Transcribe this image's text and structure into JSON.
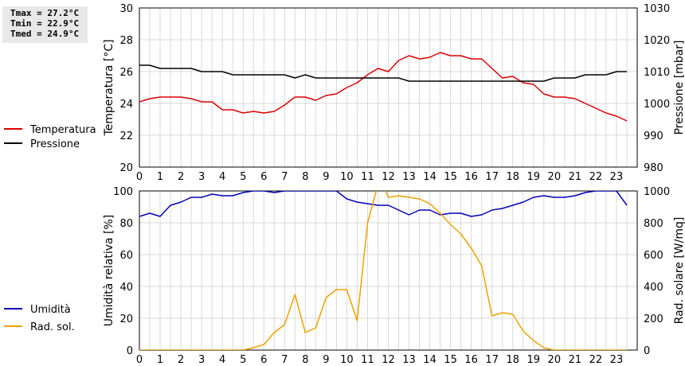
{
  "stats": {
    "tmax": "Tmax = 27.2°C",
    "tmin": "Tmin = 22.9°C",
    "tmed": "Tmed = 24.9°C"
  },
  "colors": {
    "temperature": "#dd0000",
    "pressure": "#000000",
    "humidity": "#0000bb",
    "radiation": "#f0a000",
    "grid": "#d8d8d8"
  },
  "chart_data": [
    {
      "type": "line",
      "x_ticks": [
        "0",
        "1",
        "2",
        "3",
        "4",
        "5",
        "6",
        "7",
        "8",
        "9",
        "10",
        "11",
        "12",
        "13",
        "14",
        "15",
        "16",
        "17",
        "18",
        "19",
        "20",
        "21",
        "22",
        "23"
      ],
      "xlim": [
        0,
        24
      ],
      "ylabel_left": "Temperatura [°C]",
      "ylabel_right": "Pressione [mbar]",
      "ylim_left": [
        20,
        30
      ],
      "ylim_right": [
        980,
        1030
      ],
      "yticks_left": [
        "20",
        "22",
        "24",
        "26",
        "28",
        "30"
      ],
      "yticks_right": [
        "980",
        "990",
        "1000",
        "1010",
        "1020",
        "1030"
      ],
      "grid": true,
      "legend": "left",
      "series": [
        {
          "name": "Temperatura",
          "axis": "left",
          "color": "#dd0000",
          "x": [
            0,
            0.5,
            1,
            1.5,
            2,
            2.5,
            3,
            3.5,
            4,
            4.5,
            5,
            5.5,
            6,
            6.5,
            7,
            7.5,
            8,
            8.5,
            9,
            9.5,
            10,
            10.5,
            11,
            11.5,
            12,
            12.5,
            13,
            13.5,
            14,
            14.5,
            15,
            15.5,
            16,
            16.5,
            17,
            17.5,
            18,
            18.5,
            19,
            19.5,
            20,
            20.5,
            21,
            21.5,
            22,
            22.5,
            23,
            23.5
          ],
          "y": [
            24.1,
            24.3,
            24.4,
            24.4,
            24.4,
            24.3,
            24.1,
            24.1,
            23.6,
            23.6,
            23.4,
            23.5,
            23.4,
            23.5,
            23.9,
            24.4,
            24.4,
            24.2,
            24.5,
            24.6,
            25.0,
            25.3,
            25.8,
            26.2,
            26.0,
            26.7,
            27.0,
            26.8,
            26.9,
            27.2,
            27.0,
            27.0,
            26.8,
            26.8,
            26.2,
            25.6,
            25.7,
            25.3,
            25.2,
            24.6,
            24.4,
            24.4,
            24.3,
            24.0,
            23.7,
            23.4,
            23.2,
            22.9
          ]
        },
        {
          "name": "Pressione",
          "axis": "right",
          "color": "#000000",
          "x": [
            0,
            0.5,
            1,
            1.5,
            2,
            2.5,
            3,
            3.5,
            4,
            4.5,
            5,
            5.5,
            6,
            6.5,
            7,
            7.5,
            8,
            8.5,
            9,
            9.5,
            10,
            10.5,
            11,
            11.5,
            12,
            12.5,
            13,
            13.5,
            14,
            14.5,
            15,
            15.5,
            16,
            16.5,
            17,
            17.5,
            18,
            18.5,
            19,
            19.5,
            20,
            20.5,
            21,
            21.5,
            22,
            22.5,
            23,
            23.5
          ],
          "y": [
            1012,
            1012,
            1011,
            1011,
            1011,
            1011,
            1010,
            1010,
            1010,
            1009,
            1009,
            1009,
            1009,
            1009,
            1009,
            1008,
            1009,
            1008,
            1008,
            1008,
            1008,
            1008,
            1008,
            1008,
            1008,
            1008,
            1007,
            1007,
            1007,
            1007,
            1007,
            1007,
            1007,
            1007,
            1007,
            1007,
            1007,
            1007,
            1007,
            1007,
            1008,
            1008,
            1008,
            1009,
            1009,
            1009,
            1010,
            1010
          ]
        }
      ]
    },
    {
      "type": "line",
      "x_ticks": [
        "0",
        "1",
        "2",
        "3",
        "4",
        "5",
        "6",
        "7",
        "8",
        "9",
        "10",
        "11",
        "12",
        "13",
        "14",
        "15",
        "16",
        "17",
        "18",
        "19",
        "20",
        "21",
        "22",
        "23"
      ],
      "xlim": [
        0,
        24
      ],
      "ylabel_left": "Umidità relativa [%]",
      "ylabel_right": "Rad. solare [W/mq]",
      "ylim_left": [
        0,
        100
      ],
      "ylim_right": [
        0,
        1000
      ],
      "yticks_left": [
        "0",
        "20",
        "40",
        "60",
        "80",
        "100"
      ],
      "yticks_right": [
        "0",
        "200",
        "400",
        "600",
        "800",
        "1000"
      ],
      "grid": true,
      "legend": "left",
      "series": [
        {
          "name": "Umidità",
          "axis": "left",
          "color": "#0000bb",
          "x": [
            0,
            0.5,
            1,
            1.5,
            2,
            2.5,
            3,
            3.5,
            4,
            4.5,
            5,
            5.5,
            6,
            6.5,
            7,
            7.5,
            8,
            8.5,
            9,
            9.5,
            10,
            10.5,
            11,
            11.5,
            12,
            12.5,
            13,
            13.5,
            14,
            14.5,
            15,
            15.5,
            16,
            16.5,
            17,
            17.5,
            18,
            18.5,
            19,
            19.5,
            20,
            20.5,
            21,
            21.5,
            22,
            22.5,
            23,
            23.5
          ],
          "y": [
            84,
            86,
            84,
            91,
            93,
            96,
            96,
            98,
            97,
            97,
            99,
            100,
            100,
            99,
            100,
            100,
            100,
            100,
            100,
            100,
            95,
            93,
            92,
            91,
            91,
            88,
            85,
            88,
            88,
            85,
            86,
            86,
            84,
            85,
            88,
            89,
            91,
            93,
            96,
            97,
            96,
            96,
            97,
            99,
            100,
            100,
            100,
            91
          ]
        },
        {
          "name": "Rad. sol.",
          "axis": "right",
          "color": "#f0a000",
          "x": [
            0,
            0.5,
            1,
            1.5,
            2,
            2.5,
            3,
            3.5,
            4,
            4.5,
            5,
            5.5,
            6,
            6.5,
            7,
            7.5,
            8,
            8.5,
            9,
            9.5,
            10,
            10.5,
            11,
            11.5,
            11.75,
            12,
            12.5,
            13,
            13.5,
            14,
            14.5,
            15,
            15.5,
            16,
            16.5,
            17,
            17.5,
            18,
            18.5,
            19,
            19.5,
            20,
            20.5,
            21,
            21.5,
            22,
            22.5,
            23,
            23.5
          ],
          "y": [
            0,
            0,
            0,
            0,
            0,
            0,
            0,
            0,
            0,
            0,
            0,
            15,
            35,
            110,
            160,
            350,
            110,
            140,
            330,
            380,
            380,
            185,
            800,
            1040,
            1040,
            960,
            970,
            960,
            950,
            920,
            860,
            790,
            730,
            640,
            530,
            215,
            235,
            225,
            120,
            60,
            15,
            0,
            0,
            0,
            0,
            0,
            0,
            0,
            0
          ]
        }
      ]
    }
  ]
}
